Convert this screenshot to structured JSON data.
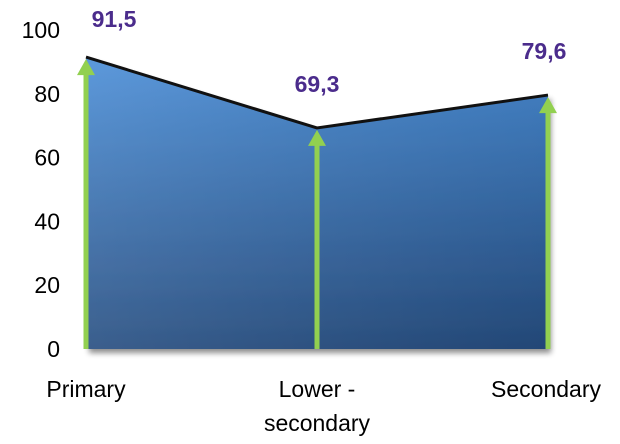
{
  "chart_data": {
    "type": "area",
    "categories": [
      {
        "lines": [
          "Primary"
        ]
      },
      {
        "lines": [
          "Lower -",
          "secondary"
        ]
      },
      {
        "lines": [
          "Secondary"
        ]
      }
    ],
    "values": [
      91.5,
      69.3,
      79.6
    ],
    "data_labels": [
      "91,5",
      "69,3",
      "79,6"
    ],
    "ylim": [
      0,
      100
    ],
    "yticks": [
      0,
      20,
      40,
      60,
      80,
      100
    ],
    "title": "",
    "xlabel": "",
    "ylabel": "",
    "grid": false,
    "legend": "none",
    "colors": {
      "area_top": "#4a8ed8",
      "area_bottom": "#264d80",
      "outline": "#111111",
      "arrow": "#92d050",
      "label": "#4b2c8c",
      "text": "#000000"
    }
  }
}
